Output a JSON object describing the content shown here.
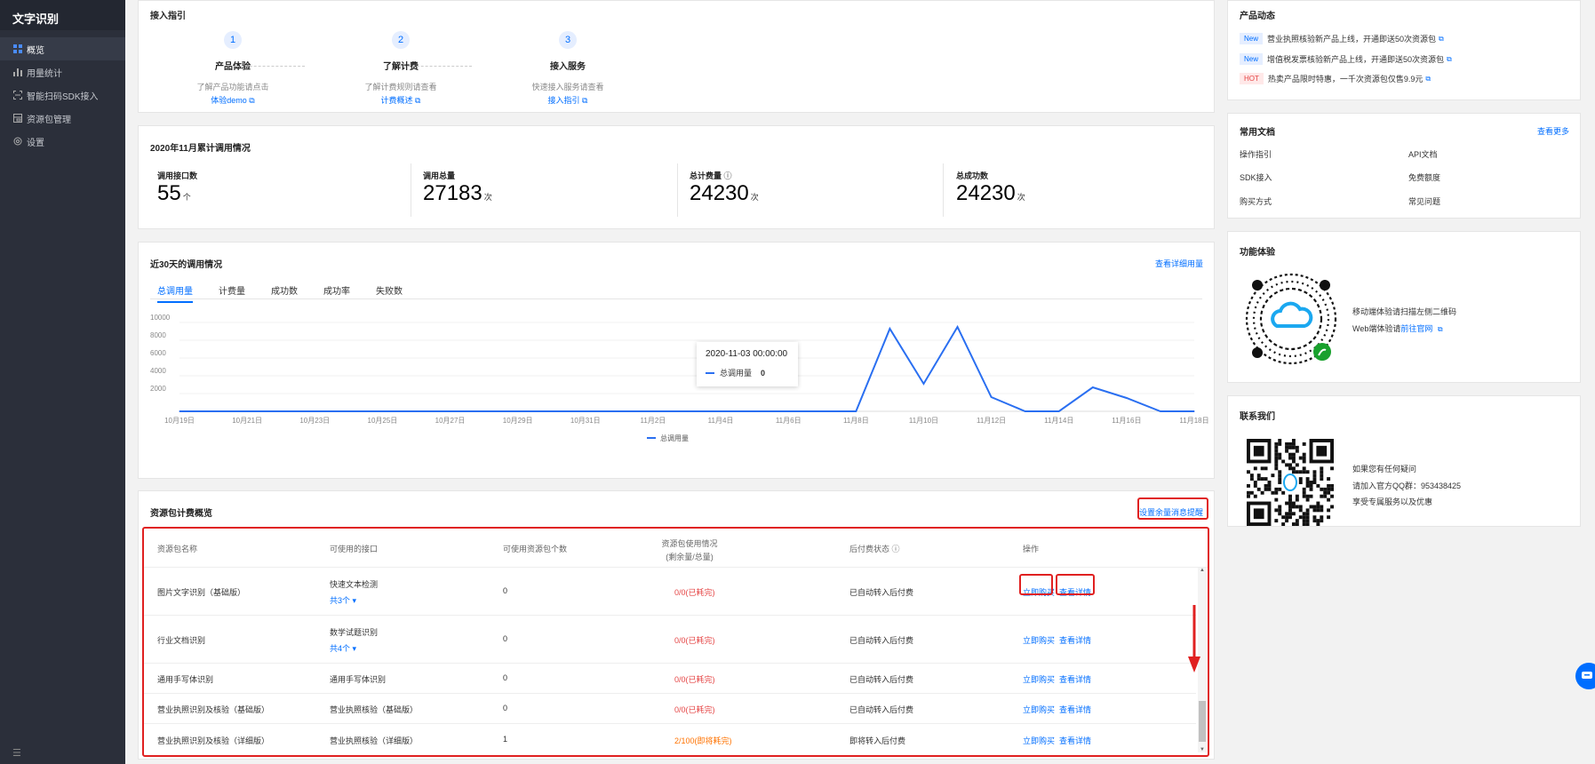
{
  "sidebar": {
    "app_title": "文字识别",
    "items": [
      {
        "label": "概览",
        "icon": "grid-icon"
      },
      {
        "label": "用量统计",
        "icon": "bar-chart-icon"
      },
      {
        "label": "智能扫码SDK接入",
        "icon": "scan-icon"
      },
      {
        "label": "资源包管理",
        "icon": "package-icon"
      },
      {
        "label": "设置",
        "icon": "gear-icon"
      }
    ]
  },
  "guide": {
    "title": "接入指引",
    "steps": [
      {
        "num": "1",
        "name": "产品体验",
        "desc": "了解产品功能请点击",
        "link": "体验demo"
      },
      {
        "num": "2",
        "name": "了解计费",
        "desc": "了解计费规则请查看",
        "link": "计费概述"
      },
      {
        "num": "3",
        "name": "接入服务",
        "desc": "快速接入服务请查看",
        "link": "接入指引"
      }
    ]
  },
  "stats": {
    "title": "2020年11月累计调用情况",
    "items": [
      {
        "label": "调用接口数",
        "value": "55",
        "unit": "个"
      },
      {
        "label": "调用总量",
        "value": "27183",
        "unit": "次"
      },
      {
        "label": "总计费量",
        "value": "24230",
        "unit": "次"
      },
      {
        "label": "总成功数",
        "value": "24230",
        "unit": "次"
      }
    ]
  },
  "usage": {
    "title": "近30天的调用情况",
    "detail_link": "查看详细用量",
    "tabs": [
      "总调用量",
      "计费量",
      "成功数",
      "成功率",
      "失败数"
    ],
    "tooltip": {
      "date": "2020-11-03 00:00:00",
      "series": "总调用量",
      "value": "0"
    }
  },
  "chart_data": {
    "type": "line",
    "x_tick_labels": [
      "10月19日",
      "10月21日",
      "10月23日",
      "10月25日",
      "10月27日",
      "10月29日",
      "10月31日",
      "11月2日",
      "11月4日",
      "11月6日",
      "11月8日",
      "11月10日",
      "11月12日",
      "11月14日",
      "11月16日",
      "11月18日"
    ],
    "y_ticks": [
      "10000",
      "8000",
      "6000",
      "4000",
      "2000"
    ],
    "ylim": [
      0,
      10000
    ],
    "series": [
      {
        "name": "总调用量",
        "color": "#2a6ff1",
        "x": [
          0,
          1,
          2,
          3,
          4,
          5,
          6,
          7,
          8,
          9,
          10,
          11,
          12,
          13,
          14,
          15,
          16,
          17,
          18,
          19,
          20,
          21,
          22,
          23,
          24,
          25,
          26,
          27,
          28,
          29,
          30
        ],
        "values": [
          0,
          0,
          0,
          0,
          0,
          0,
          0,
          0,
          0,
          0,
          0,
          0,
          0,
          0,
          0,
          0,
          0,
          0,
          0,
          0,
          0,
          9300,
          3100,
          9500,
          1600,
          0,
          0,
          2700,
          1500,
          0,
          0
        ]
      }
    ],
    "legend": "bottom-center"
  },
  "packages": {
    "title": "资源包计费概览",
    "alert_link": "设置余量消息提醒",
    "headers": [
      "资源包名称",
      "可使用的接口",
      "可使用资源包个数",
      "资源包使用情况",
      "(剩余量/总量)",
      "后付费状态",
      "操作"
    ],
    "rows": [
      {
        "name": "图片文字识别（基础版）",
        "api": "快速文本检测",
        "more": "共3个",
        "count": "0",
        "usage": "0/0(已耗完)",
        "status": "已自动转入后付费",
        "buy": "立即购买",
        "detail": "查看详情"
      },
      {
        "name": "行业文档识别",
        "api": "数学试题识别",
        "more": "共4个",
        "count": "0",
        "usage": "0/0(已耗完)",
        "status": "已自动转入后付费",
        "buy": "立即购买",
        "detail": "查看详情"
      },
      {
        "name": "通用手写体识别",
        "api": "通用手写体识别",
        "more": "",
        "count": "0",
        "usage": "0/0(已耗完)",
        "status": "已自动转入后付费",
        "buy": "立即购买",
        "detail": "查看详情"
      },
      {
        "name": "营业执照识别及核验（基础版）",
        "api": "营业执照核验（基础版）",
        "more": "",
        "count": "0",
        "usage": "0/0(已耗完)",
        "status": "已自动转入后付费",
        "buy": "立即购买",
        "detail": "查看详情"
      },
      {
        "name": "营业执照识别及核验（详细版）",
        "api": "营业执照核验（详细版）",
        "more": "",
        "count": "1",
        "usage": "2/100(即将耗完)",
        "status": "即将转入后付费",
        "buy": "立即购买",
        "detail": "查看详情"
      }
    ]
  },
  "news": {
    "title": "产品动态",
    "items": [
      {
        "tag": "New",
        "text": "营业执照核验新产品上线，开通即送50次资源包"
      },
      {
        "tag": "New",
        "text": "增值税发票核验新产品上线，开通即送50次资源包"
      },
      {
        "tag": "HOT",
        "text": "热卖产品限时特惠，一千次资源包仅售9.9元"
      }
    ]
  },
  "docs": {
    "title": "常用文档",
    "more": "查看更多",
    "items": [
      "操作指引",
      "API文档",
      "SDK接入",
      "免费额度",
      "购买方式",
      "常见问题"
    ]
  },
  "experience": {
    "title": "功能体验",
    "line1": "移动端体验请扫描左侧二维码",
    "line2_prefix": "Web端体验请",
    "line2_link": "前往官网"
  },
  "contact": {
    "title": "联系我们",
    "line1": "如果您有任何疑问",
    "line2": "请加入官方QQ群：953438425",
    "line3": "享受专属服务以及优惠"
  }
}
